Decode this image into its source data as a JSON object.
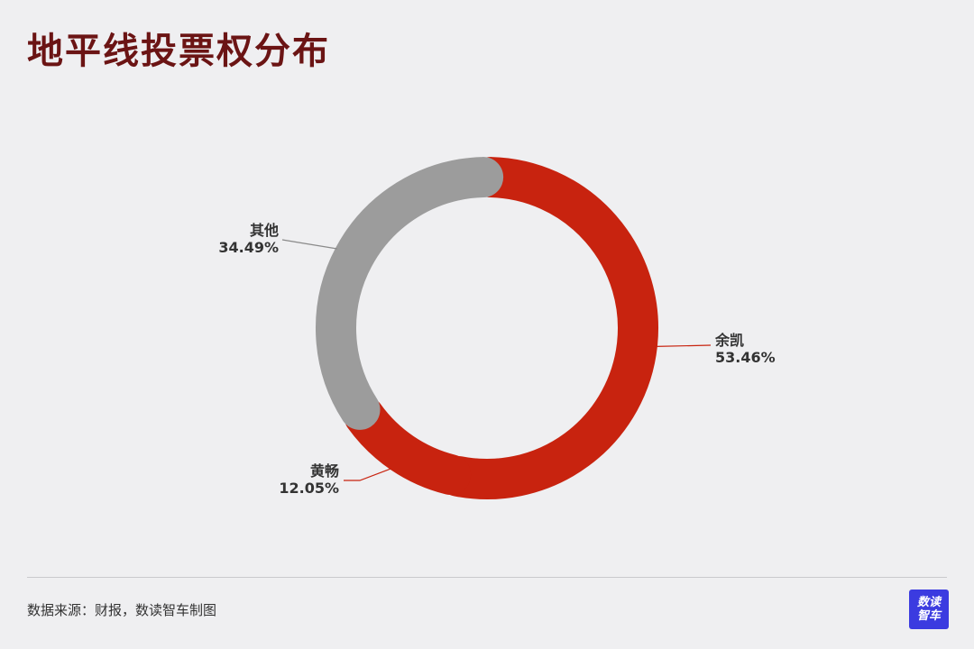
{
  "title": "地平线投票权分布",
  "footer": {
    "source": "数据来源：财报，数读智车制图",
    "logo_line1": "数读",
    "logo_line2": "智车"
  },
  "chart_data": {
    "type": "pie",
    "variant": "donut",
    "title": "地平线投票权分布",
    "slices": [
      {
        "label": "余凯",
        "value": 53.46,
        "value_label": "53.46%",
        "color": "#c8230f"
      },
      {
        "label": "黄畅",
        "value": 12.05,
        "value_label": "12.05%",
        "color": "#c8230f"
      },
      {
        "label": "其他",
        "value": 34.49,
        "value_label": "34.49%",
        "color": "#9c9c9c"
      }
    ],
    "start": "top",
    "direction": "clockwise",
    "legend": "none",
    "labels": "outside with leader lines"
  }
}
